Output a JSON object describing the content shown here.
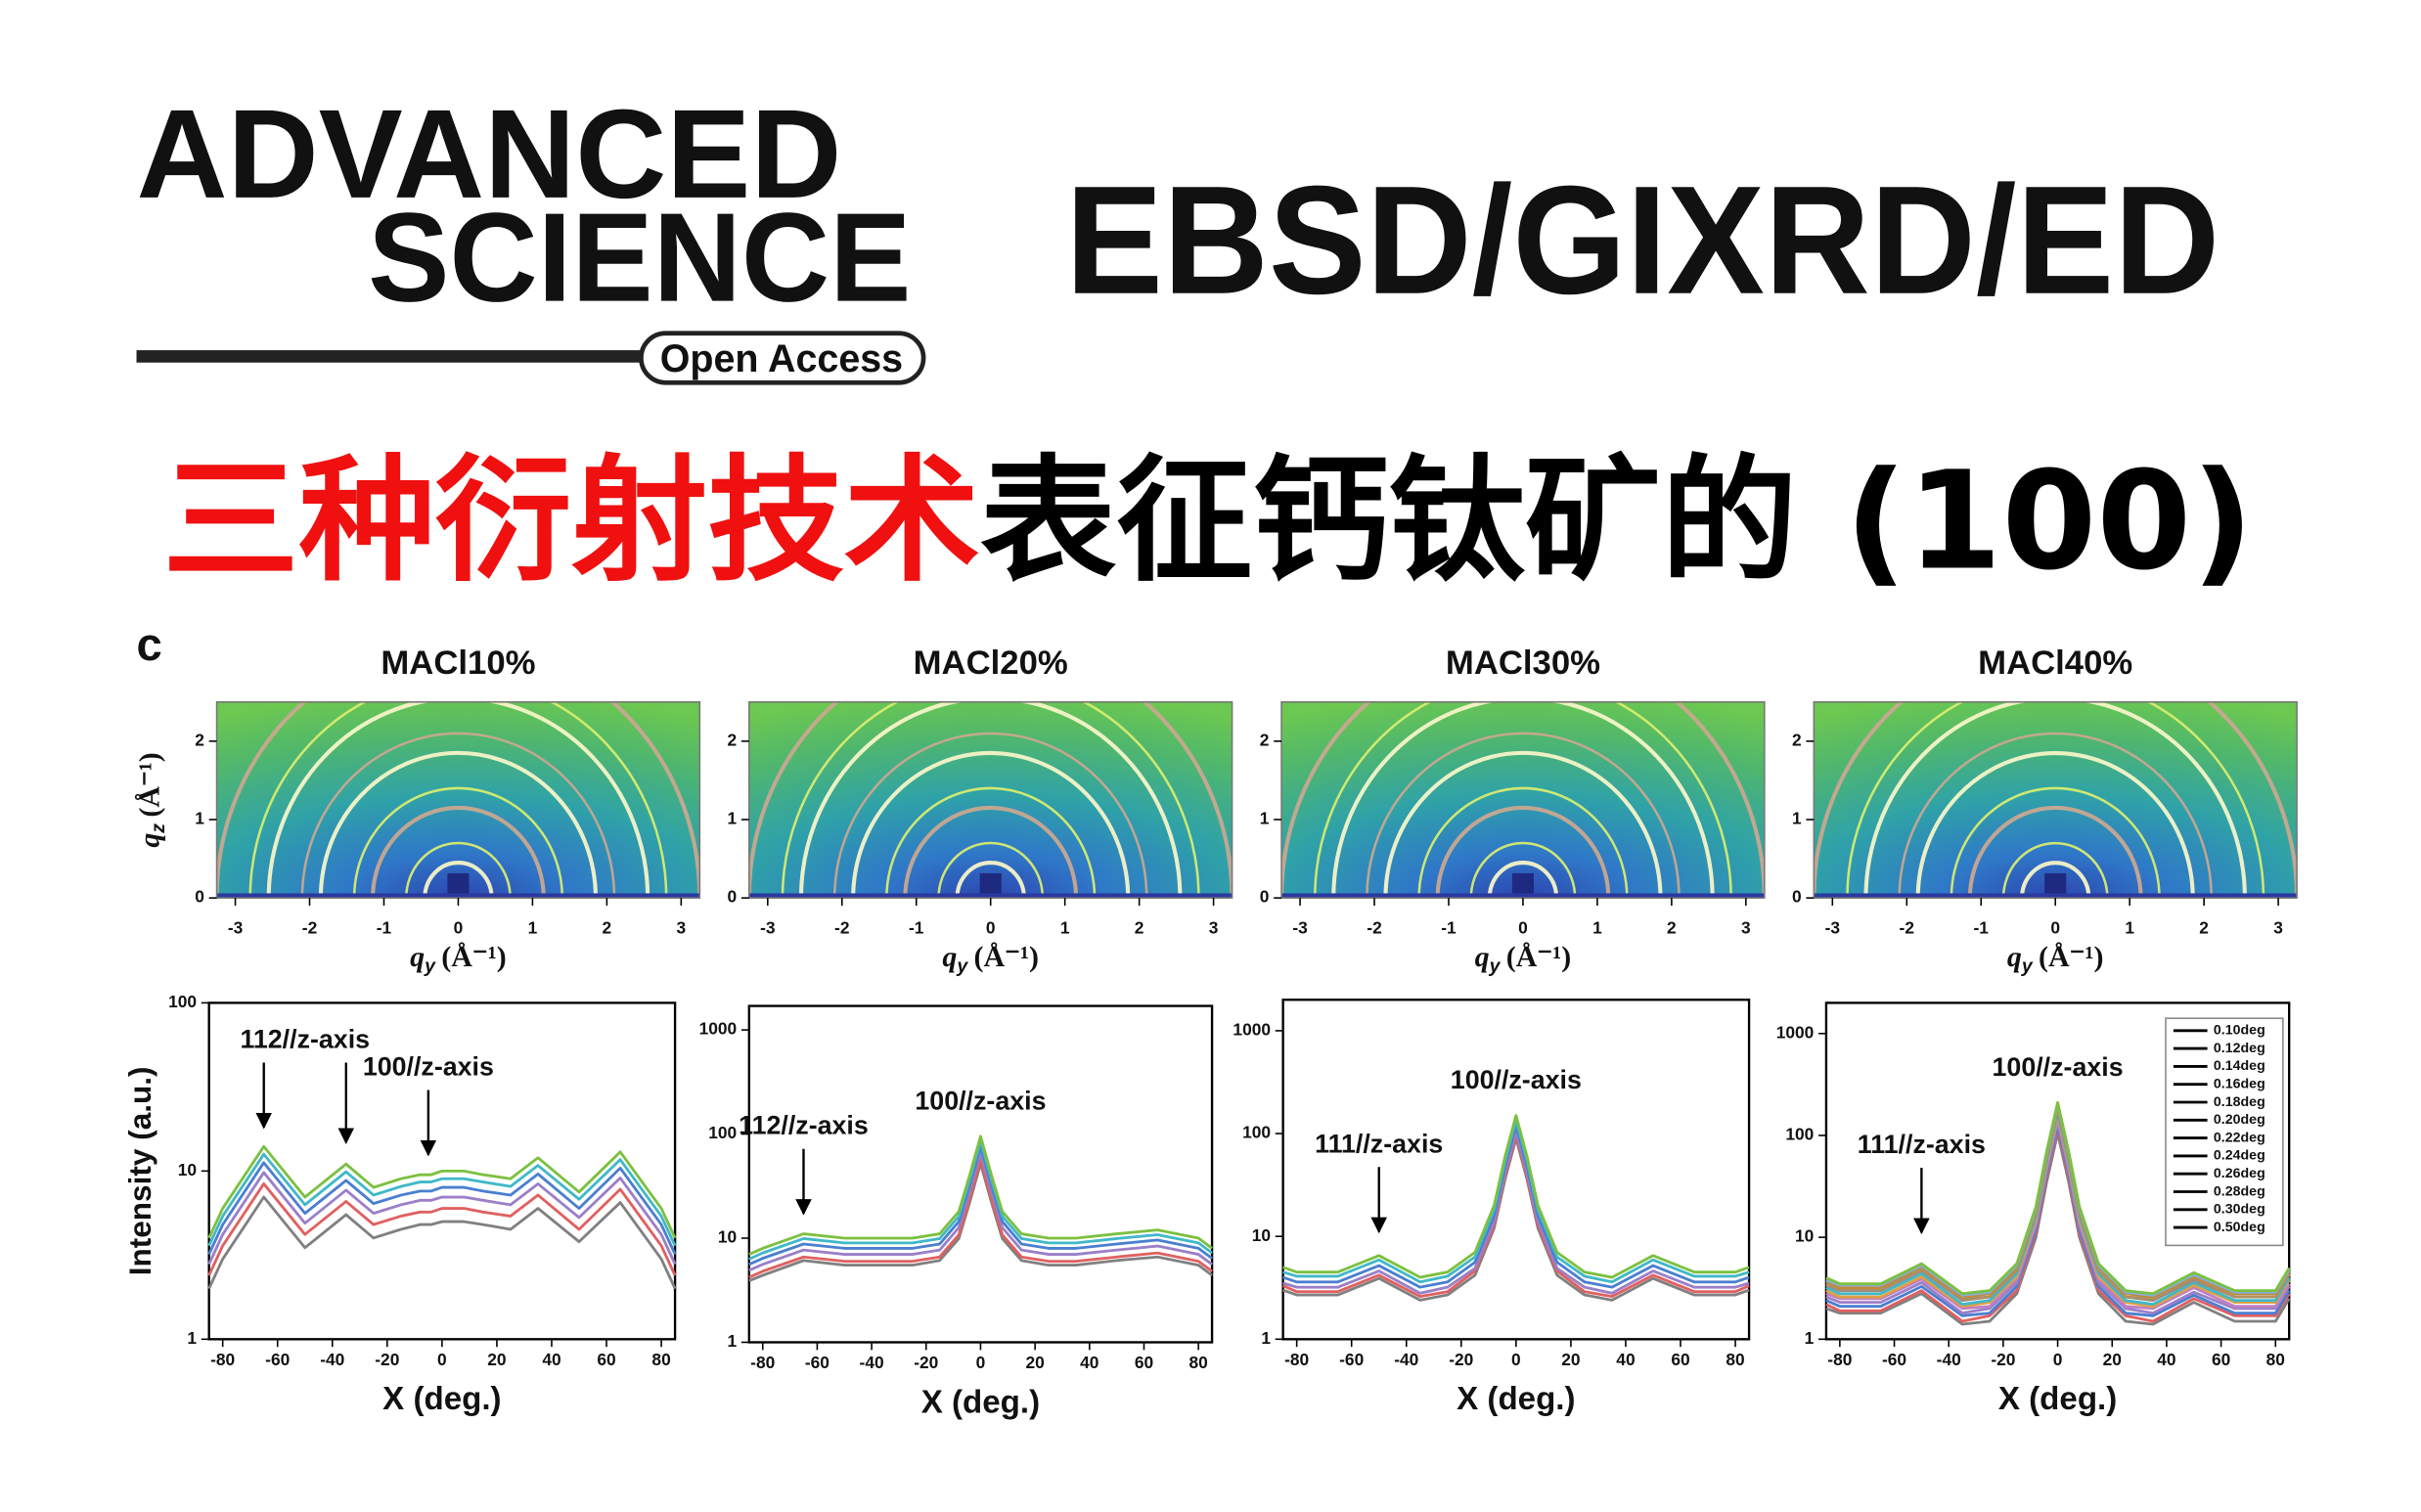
{
  "logo": {
    "line1": "ADVANCED",
    "line2": "SCIENCE",
    "badge": "Open Access"
  },
  "topic": "EBSD/GIXRD/ED",
  "title": {
    "highlight": "三种衍射技术",
    "rest": "表征钙钛矿的 (100)"
  },
  "panel_label": "c",
  "chart_data": [
    {
      "type": "image",
      "title": "MACl10%",
      "xlabel": {
        "symbol": "q",
        "subscript": "y",
        "unit": "(Å⁻¹)"
      },
      "ylabel": {
        "symbol": "q",
        "subscript": "z",
        "unit": "(Å⁻¹)"
      },
      "xlim": [
        -3.25,
        3.25
      ],
      "ylim": [
        0,
        2.5
      ],
      "xticks": [
        -3,
        -2,
        -1,
        0,
        1,
        2,
        3
      ],
      "yticks": [
        0,
        1,
        2
      ]
    },
    {
      "type": "image",
      "title": "MACl20%",
      "xlabel": {
        "symbol": "q",
        "subscript": "y",
        "unit": "(Å⁻¹)"
      },
      "xlim": [
        -3.25,
        3.25
      ],
      "ylim": [
        0,
        2.5
      ],
      "xticks": [
        -3,
        -2,
        -1,
        0,
        1,
        2,
        3
      ],
      "yticks": [
        0,
        1,
        2
      ]
    },
    {
      "type": "image",
      "title": "MACl30%",
      "xlabel": {
        "symbol": "q",
        "subscript": "y",
        "unit": "(Å⁻¹)"
      },
      "xlim": [
        -3.25,
        3.25
      ],
      "ylim": [
        0,
        2.5
      ],
      "xticks": [
        -3,
        -2,
        -1,
        0,
        1,
        2,
        3
      ],
      "yticks": [
        0,
        1,
        2
      ]
    },
    {
      "type": "image",
      "title": "MACl40%",
      "xlabel": {
        "symbol": "q",
        "subscript": "y",
        "unit": "(Å⁻¹)"
      },
      "xlim": [
        -3.25,
        3.25
      ],
      "ylim": [
        0,
        2.5
      ],
      "xticks": [
        -3,
        -2,
        -1,
        0,
        1,
        2,
        3
      ],
      "yticks": [
        0,
        1,
        2
      ]
    },
    {
      "type": "line",
      "log_y": true,
      "xlabel": "X (deg.)",
      "ylabel": "Intensity (a.u.)",
      "xlim": [
        -85,
        85
      ],
      "ylim": [
        1,
        100
      ],
      "xticks": [
        -80,
        -60,
        -40,
        -20,
        0,
        20,
        40,
        60,
        80
      ],
      "yticks": [
        1,
        10,
        100
      ],
      "x": [
        -85,
        -80,
        -65,
        -50,
        -35,
        -25,
        -15,
        -8,
        -4,
        0,
        4,
        8,
        15,
        25,
        35,
        50,
        65,
        80,
        85
      ],
      "series": [
        {
          "color": "#808080",
          "values": [
            2,
            3,
            7,
            3.5,
            5.5,
            4,
            4.5,
            4.8,
            4.8,
            5,
            5,
            5,
            4.8,
            4.5,
            6,
            3.8,
            6.5,
            3,
            2
          ]
        },
        {
          "color": "#e06060",
          "values": [
            2.4,
            3.6,
            8.4,
            4.2,
            6.6,
            4.8,
            5.4,
            5.7,
            5.7,
            6,
            6,
            6,
            5.7,
            5.4,
            7.2,
            4.5,
            7.8,
            3.6,
            2.4
          ]
        },
        {
          "color": "#9b7fc8",
          "values": [
            2.8,
            4.2,
            9.8,
            4.9,
            7.7,
            5.6,
            6.3,
            6.7,
            6.7,
            7,
            7,
            7,
            6.7,
            6.3,
            8.4,
            5.3,
            9.1,
            4.2,
            2.8
          ]
        },
        {
          "color": "#4a7fd0",
          "values": [
            3.2,
            4.8,
            11.2,
            5.6,
            8.8,
            6.4,
            7.2,
            7.6,
            7.6,
            8,
            8,
            8,
            7.6,
            7.2,
            9.6,
            6,
            10.4,
            4.8,
            3.2
          ]
        },
        {
          "color": "#40b8c8",
          "values": [
            3.6,
            5.4,
            12.6,
            6.3,
            9.9,
            7.2,
            8.1,
            8.6,
            8.6,
            9,
            9,
            9,
            8.6,
            8.1,
            10.8,
            6.8,
            11.7,
            5.4,
            3.6
          ]
        },
        {
          "color": "#7cc040",
          "values": [
            4,
            6,
            14,
            7,
            11,
            8,
            9,
            9.5,
            9.5,
            10,
            10,
            10,
            9.5,
            9,
            12,
            7.5,
            13,
            6,
            4
          ]
        }
      ],
      "annotations": [
        {
          "text": "112//z-axis",
          "points": [
            {
              "x": -65,
              "y": 16
            },
            {
              "x": -35,
              "y": 13
            }
          ]
        },
        {
          "text": "100//z-axis",
          "points": [
            {
              "x": -5,
              "y": 11
            }
          ]
        }
      ]
    },
    {
      "type": "line",
      "log_y": true,
      "xlabel": "X (deg.)",
      "xlim": [
        -85,
        85
      ],
      "ylim": [
        1,
        1700
      ],
      "xticks": [
        -80,
        -60,
        -40,
        -20,
        0,
        20,
        40,
        60,
        80
      ],
      "yticks": [
        1,
        10,
        100,
        1000
      ],
      "x": [
        -85,
        -80,
        -65,
        -50,
        -35,
        -25,
        -15,
        -8,
        -4,
        0,
        4,
        8,
        15,
        25,
        35,
        50,
        65,
        80,
        85
      ],
      "series": [
        {
          "color": "#808080",
          "values": [
            3.9,
            4.4,
            6.1,
            5.5,
            5.5,
            5.5,
            6.1,
            9.9,
            22,
            52,
            22,
            9.9,
            6.1,
            5.5,
            5.5,
            6.1,
            6.6,
            5.5,
            4.4
          ]
        },
        {
          "color": "#e06060",
          "values": [
            4.2,
            4.8,
            6.6,
            6,
            6,
            6,
            6.6,
            10.8,
            24,
            57,
            24,
            10.8,
            6.6,
            6,
            6,
            6.6,
            7.2,
            6,
            4.8
          ]
        },
        {
          "color": "#9b7fc8",
          "values": [
            4.9,
            5.6,
            7.7,
            7,
            7,
            7,
            7.7,
            12.6,
            28,
            66.5,
            28,
            12.6,
            7.7,
            7,
            7,
            7.7,
            8.4,
            7,
            5.6
          ]
        },
        {
          "color": "#4a7fd0",
          "values": [
            5.6,
            6.4,
            8.8,
            8,
            8,
            8,
            8.8,
            14.4,
            32,
            76,
            32,
            14.4,
            8.8,
            8,
            8,
            8.8,
            9.6,
            8,
            6.4
          ]
        },
        {
          "color": "#40b8c8",
          "values": [
            6.3,
            7.2,
            9.9,
            9,
            9,
            9,
            9.9,
            16.2,
            36,
            85.5,
            36,
            16.2,
            9.9,
            9,
            9,
            9.9,
            10.8,
            9,
            7.2
          ]
        },
        {
          "color": "#7cc040",
          "values": [
            7,
            8,
            11,
            10,
            10,
            10,
            11,
            18,
            40,
            95,
            40,
            18,
            11,
            10,
            10,
            11,
            12,
            10,
            8
          ]
        }
      ],
      "annotations": [
        {
          "text": "112//z-axis",
          "points": [
            {
              "x": -65,
              "y": 14
            }
          ]
        },
        {
          "text": "100//z-axis"
        }
      ]
    },
    {
      "type": "line",
      "log_y": true,
      "xlabel": "X (deg.)",
      "xlim": [
        -85,
        85
      ],
      "ylim": [
        1,
        2000
      ],
      "xticks": [
        -80,
        -60,
        -40,
        -20,
        0,
        20,
        40,
        60,
        80
      ],
      "yticks": [
        1,
        10,
        100,
        1000
      ],
      "x": [
        -85,
        -80,
        -65,
        -50,
        -35,
        -25,
        -15,
        -8,
        -4,
        0,
        4,
        8,
        15,
        25,
        35,
        50,
        65,
        80,
        85
      ],
      "series": [
        {
          "color": "#808080",
          "values": [
            3,
            2.7,
            2.7,
            3.9,
            2.4,
            2.7,
            4.2,
            12,
            36,
            90,
            36,
            12,
            4.2,
            2.7,
            2.4,
            3.9,
            2.7,
            2.7,
            3
          ]
        },
        {
          "color": "#e06060",
          "values": [
            3.3,
            2.9,
            2.9,
            4.2,
            2.6,
            2.9,
            4.6,
            13,
            39,
            97.5,
            39,
            13,
            4.6,
            2.9,
            2.6,
            4.2,
            2.9,
            2.9,
            3.3
          ]
        },
        {
          "color": "#9b7fc8",
          "values": [
            3.5,
            3.2,
            3.2,
            4.6,
            2.8,
            3.2,
            4.9,
            14,
            42,
            105,
            42,
            14,
            4.9,
            3.2,
            2.8,
            4.6,
            3.2,
            3.2,
            3.5
          ]
        },
        {
          "color": "#4a7fd0",
          "values": [
            4,
            3.6,
            3.6,
            5.2,
            3.2,
            3.6,
            5.6,
            16,
            48,
            120,
            48,
            16,
            5.6,
            3.6,
            3.2,
            5.2,
            3.6,
            3.6,
            4
          ]
        },
        {
          "color": "#40b8c8",
          "values": [
            4.5,
            4.1,
            4.1,
            5.9,
            3.6,
            4.1,
            6.3,
            18,
            54,
            135,
            54,
            18,
            6.3,
            4.1,
            3.6,
            5.9,
            4.1,
            4.1,
            4.5
          ]
        },
        {
          "color": "#7cc040",
          "values": [
            5,
            4.5,
            4.5,
            6.5,
            4,
            4.5,
            7,
            20,
            60,
            150,
            60,
            20,
            7,
            4.5,
            4,
            6.5,
            4.5,
            4.5,
            5
          ]
        }
      ],
      "annotations": [
        {
          "text": "111//z-axis",
          "points": [
            {
              "x": -50,
              "y": 9
            }
          ]
        },
        {
          "text": "100//z-axis"
        }
      ]
    },
    {
      "type": "line",
      "log_y": true,
      "xlabel": "X (deg.)",
      "xlim": [
        -85,
        85
      ],
      "ylim": [
        1,
        2000
      ],
      "xticks": [
        -80,
        -60,
        -40,
        -20,
        0,
        20,
        40,
        60,
        80
      ],
      "yticks": [
        1,
        10,
        100,
        1000
      ],
      "legend": "upper right",
      "x": [
        -85,
        -80,
        -65,
        -50,
        -35,
        -25,
        -15,
        -8,
        -4,
        0,
        4,
        8,
        15,
        25,
        35,
        50,
        65,
        80,
        85
      ],
      "series": [
        {
          "name": "0.10deg",
          "color": "#808080",
          "values": [
            2,
            1.8,
            1.8,
            2.8,
            1.4,
            1.5,
            2.8,
            10,
            35,
            105,
            35,
            10,
            2.8,
            1.5,
            1.4,
            2.3,
            1.5,
            1.5,
            2.5
          ]
        },
        {
          "name": "0.12deg",
          "color": "#e06060",
          "values": [
            2.2,
            1.9,
            1.9,
            3,
            1.5,
            1.7,
            3,
            11,
            38.5,
            115.5,
            38.5,
            11,
            3,
            1.7,
            1.5,
            2.5,
            1.7,
            1.7,
            2.8
          ]
        },
        {
          "name": "0.14deg",
          "color": "#4a7fd0",
          "values": [
            2.4,
            2.1,
            2.1,
            3.3,
            1.7,
            1.8,
            3.3,
            12,
            42,
            126,
            42,
            12,
            3.3,
            1.8,
            1.7,
            2.7,
            1.8,
            1.8,
            3
          ]
        },
        {
          "name": "0.16deg",
          "color": "#9b7fc8",
          "values": [
            2.6,
            2.3,
            2.3,
            3.6,
            1.8,
            2,
            3.6,
            13,
            45.5,
            136.5,
            45.5,
            13,
            3.6,
            2,
            1.8,
            2.9,
            2,
            2,
            3.3
          ]
        },
        {
          "name": "0.18deg",
          "color": "#c080c0",
          "values": [
            2.8,
            2.5,
            2.5,
            3.9,
            2,
            2.1,
            3.9,
            14,
            49,
            147,
            49,
            14,
            3.9,
            2.1,
            2,
            3.2,
            2.1,
            2.1,
            3.5
          ]
        },
        {
          "name": "0.20deg",
          "color": "#e0a040",
          "values": [
            3,
            2.6,
            2.6,
            4.1,
            2.1,
            2.3,
            4.1,
            15,
            52.5,
            157.5,
            52.5,
            15,
            4.1,
            2.3,
            2.1,
            3.4,
            2.3,
            2.3,
            3.8
          ]
        },
        {
          "name": "0.22deg",
          "color": "#40b8c8",
          "values": [
            3.2,
            2.8,
            2.8,
            4.4,
            2.2,
            2.4,
            4.4,
            16,
            56,
            168,
            56,
            16,
            4.4,
            2.4,
            2.2,
            3.6,
            2.4,
            2.4,
            4
          ]
        },
        {
          "name": "0.24deg",
          "color": "#9a8a80",
          "values": [
            3.4,
            3,
            3,
            4.7,
            2.4,
            2.6,
            4.7,
            17,
            59.5,
            178.5,
            59.5,
            17,
            4.7,
            2.6,
            2.4,
            3.8,
            2.6,
            2.6,
            4.3
          ]
        },
        {
          "name": "0.26deg",
          "color": "#b09060",
          "values": [
            3.5,
            3.1,
            3.1,
            4.8,
            2.5,
            2.6,
            4.8,
            17.6,
            61.6,
            184.8,
            61.6,
            17.6,
            4.8,
            2.6,
            2.5,
            4,
            2.6,
            2.6,
            4.4
          ]
        },
        {
          "name": "0.28deg",
          "color": "#c08a40",
          "values": [
            3.7,
            3.2,
            3.2,
            5.1,
            2.6,
            2.8,
            5.1,
            18.4,
            64.4,
            193.2,
            64.4,
            18.4,
            5.1,
            2.8,
            2.6,
            4.1,
            2.8,
            2.8,
            4.6
          ]
        },
        {
          "name": "0.30deg",
          "color": "#80b0e0",
          "values": [
            3.8,
            3.4,
            3.4,
            5.3,
            2.7,
            2.9,
            5.3,
            19.2,
            67.2,
            201.6,
            67.2,
            19.2,
            5.3,
            2.9,
            2.7,
            4.3,
            2.9,
            2.9,
            4.8
          ]
        },
        {
          "name": "0.50deg",
          "color": "#7cc040",
          "values": [
            4,
            3.5,
            3.5,
            5.5,
            2.8,
            3,
            5.5,
            20,
            70,
            210,
            70,
            20,
            5.5,
            3,
            2.8,
            4.5,
            3,
            3,
            5
          ]
        }
      ],
      "annotations": [
        {
          "text": "111//z-axis",
          "points": [
            {
              "x": -50,
              "y": 9
            }
          ]
        },
        {
          "text": "100//z-axis"
        }
      ]
    }
  ]
}
